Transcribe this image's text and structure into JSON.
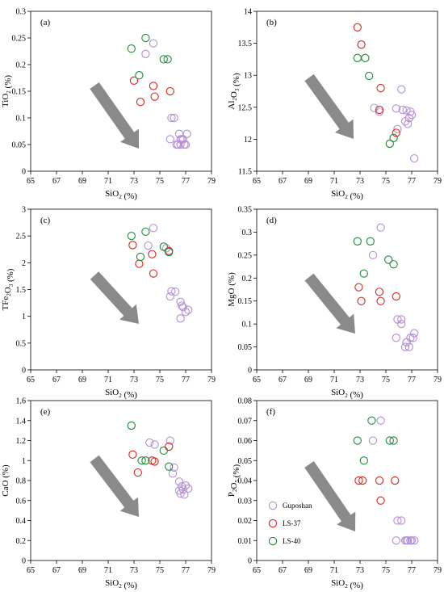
{
  "colors": {
    "Guposhan": "#b48ed6",
    "LS-37": "#d9251d",
    "LS-40": "#1f8a3c",
    "arrow": "#8a8a8a"
  },
  "legend": [
    "Guposhan",
    "LS-37",
    "LS-40"
  ],
  "chart_data": [
    {
      "type": "scatter",
      "panel": "(a)",
      "xlabel": "SiO2 (%)",
      "ylabel": "TiO2 (%)",
      "xlim": [
        65,
        79
      ],
      "ylim": [
        0,
        0.3
      ],
      "xticks": [
        "65",
        "67",
        "69",
        "71",
        "73",
        "75",
        "77",
        "79"
      ],
      "yticks": [
        "0",
        "0.05",
        "0.1",
        "0.15",
        "0.2",
        "0.25",
        "0.3"
      ],
      "series": [
        {
          "name": "Guposhan",
          "points": [
            [
              73.9,
              0.22
            ],
            [
              74.5,
              0.24
            ],
            [
              75.9,
              0.1
            ],
            [
              76.1,
              0.1
            ],
            [
              75.8,
              0.06
            ],
            [
              76.5,
              0.07
            ],
            [
              76.6,
              0.06
            ],
            [
              76.8,
              0.06
            ],
            [
              77.1,
              0.07
            ],
            [
              76.4,
              0.05
            ],
            [
              76.6,
              0.05
            ],
            [
              76.9,
              0.05
            ],
            [
              76.3,
              0.05
            ],
            [
              76.7,
              0.06
            ],
            [
              77.0,
              0.05
            ]
          ]
        },
        {
          "name": "LS-37",
          "points": [
            [
              73.0,
              0.17
            ],
            [
              73.5,
              0.13
            ],
            [
              74.5,
              0.16
            ],
            [
              74.6,
              0.14
            ],
            [
              75.8,
              0.15
            ]
          ]
        },
        {
          "name": "LS-40",
          "points": [
            [
              72.8,
              0.23
            ],
            [
              73.9,
              0.25
            ],
            [
              73.4,
              0.18
            ],
            [
              75.3,
              0.21
            ],
            [
              75.6,
              0.21
            ]
          ]
        }
      ]
    },
    {
      "type": "scatter",
      "panel": "(b)",
      "xlabel": "SiO2 (%)",
      "ylabel": "Al2O3 (%)",
      "xlim": [
        65,
        79
      ],
      "ylim": [
        11.5,
        14
      ],
      "xticks": [
        "65",
        "67",
        "69",
        "71",
        "73",
        "75",
        "77",
        "79"
      ],
      "yticks": [
        "11.5",
        "12",
        "12.5",
        "13",
        "13.5",
        "14"
      ],
      "series": [
        {
          "name": "Guposhan",
          "points": [
            [
              74.1,
              12.49
            ],
            [
              74.5,
              12.43
            ],
            [
              75.8,
              12.48
            ],
            [
              76.2,
              12.78
            ],
            [
              76.3,
              12.46
            ],
            [
              76.6,
              12.45
            ],
            [
              76.9,
              12.43
            ],
            [
              77.0,
              12.38
            ],
            [
              76.5,
              12.28
            ],
            [
              76.7,
              12.24
            ],
            [
              77.2,
              11.7
            ],
            [
              75.9,
              12.16
            ],
            [
              76.8,
              12.33
            ]
          ]
        },
        {
          "name": "LS-37",
          "points": [
            [
              72.8,
              13.75
            ],
            [
              73.1,
              13.48
            ],
            [
              74.6,
              12.8
            ],
            [
              74.5,
              12.46
            ],
            [
              75.8,
              12.1
            ]
          ]
        },
        {
          "name": "LS-40",
          "points": [
            [
              72.8,
              13.27
            ],
            [
              73.4,
              13.27
            ],
            [
              73.7,
              12.99
            ],
            [
              75.3,
              11.93
            ],
            [
              75.6,
              12.02
            ]
          ]
        }
      ]
    },
    {
      "type": "scatter",
      "panel": "(c)",
      "xlabel": "SiO2 (%)",
      "ylabel": "TFe2O3 (%)",
      "xlim": [
        65,
        79
      ],
      "ylim": [
        0,
        3
      ],
      "xticks": [
        "65",
        "67",
        "69",
        "71",
        "73",
        "75",
        "77",
        "79"
      ],
      "yticks": [
        "0",
        "0.5",
        "1",
        "1.5",
        "2",
        "2.5",
        "3"
      ],
      "series": [
        {
          "name": "Guposhan",
          "points": [
            [
              74.5,
              2.65
            ],
            [
              74.1,
              2.32
            ],
            [
              75.5,
              2.27
            ],
            [
              75.9,
              1.47
            ],
            [
              76.2,
              1.46
            ],
            [
              75.8,
              1.37
            ],
            [
              76.6,
              1.27
            ],
            [
              76.7,
              1.2
            ],
            [
              76.8,
              1.17
            ],
            [
              77.2,
              1.12
            ],
            [
              77.0,
              1.08
            ],
            [
              76.6,
              0.96
            ]
          ]
        },
        {
          "name": "LS-37",
          "points": [
            [
              72.9,
              2.33
            ],
            [
              73.4,
              1.98
            ],
            [
              74.4,
              2.16
            ],
            [
              74.5,
              1.8
            ],
            [
              75.7,
              2.22
            ]
          ]
        },
        {
          "name": "LS-40",
          "points": [
            [
              72.8,
              2.5
            ],
            [
              73.9,
              2.58
            ],
            [
              73.5,
              2.11
            ],
            [
              75.3,
              2.3
            ],
            [
              75.7,
              2.2
            ]
          ]
        }
      ]
    },
    {
      "type": "scatter",
      "panel": "(d)",
      "xlabel": "SiO2 (%)",
      "ylabel": "MgO (%)",
      "xlim": [
        65,
        79
      ],
      "ylim": [
        0,
        0.35
      ],
      "xticks": [
        "65",
        "67",
        "69",
        "71",
        "73",
        "75",
        "77",
        "79"
      ],
      "yticks": [
        "0",
        "0.05",
        "0.1",
        "0.15",
        "0.2",
        "0.25",
        "0.3",
        "0.35"
      ],
      "series": [
        {
          "name": "Guposhan",
          "points": [
            [
              74.6,
              0.31
            ],
            [
              74.0,
              0.25
            ],
            [
              75.9,
              0.11
            ],
            [
              76.2,
              0.11
            ],
            [
              76.2,
              0.1
            ],
            [
              75.8,
              0.07
            ],
            [
              76.6,
              0.06
            ],
            [
              76.9,
              0.07
            ],
            [
              77.2,
              0.08
            ],
            [
              77.1,
              0.07
            ],
            [
              76.5,
              0.05
            ],
            [
              76.8,
              0.05
            ],
            [
              76.6,
              0.06
            ]
          ]
        },
        {
          "name": "LS-37",
          "points": [
            [
              72.9,
              0.18
            ],
            [
              73.1,
              0.15
            ],
            [
              74.5,
              0.17
            ],
            [
              74.6,
              0.15
            ],
            [
              75.8,
              0.16
            ]
          ]
        },
        {
          "name": "LS-40",
          "points": [
            [
              72.8,
              0.28
            ],
            [
              73.8,
              0.28
            ],
            [
              73.3,
              0.21
            ],
            [
              75.2,
              0.24
            ],
            [
              75.6,
              0.23
            ]
          ]
        }
      ]
    },
    {
      "type": "scatter",
      "panel": "(e)",
      "xlabel": "SiO2 (%)",
      "ylabel": "CaO (%)",
      "xlim": [
        65,
        79
      ],
      "ylim": [
        0,
        1.6
      ],
      "xticks": [
        "65",
        "67",
        "69",
        "71",
        "73",
        "75",
        "77",
        "79"
      ],
      "yticks": [
        "0",
        "0.2",
        "0.4",
        "0.6",
        "0.8",
        "1",
        "1.2",
        "1.4",
        "1.6"
      ],
      "series": [
        {
          "name": "Guposhan",
          "points": [
            [
              74.2,
              1.18
            ],
            [
              74.6,
              1.16
            ],
            [
              75.8,
              1.2
            ],
            [
              76.1,
              0.93
            ],
            [
              76.0,
              0.87
            ],
            [
              76.5,
              0.79
            ],
            [
              76.7,
              0.74
            ],
            [
              77.0,
              0.75
            ],
            [
              77.2,
              0.72
            ],
            [
              76.5,
              0.7
            ],
            [
              76.6,
              0.67
            ],
            [
              76.9,
              0.66
            ],
            [
              76.8,
              0.71
            ]
          ]
        },
        {
          "name": "LS-37",
          "points": [
            [
              72.9,
              1.06
            ],
            [
              73.3,
              0.88
            ],
            [
              74.4,
              1.0
            ],
            [
              74.6,
              0.99
            ],
            [
              75.7,
              1.14
            ]
          ]
        },
        {
          "name": "LS-40",
          "points": [
            [
              72.8,
              1.35
            ],
            [
              73.6,
              1.0
            ],
            [
              73.9,
              1.0
            ],
            [
              75.3,
              1.1
            ],
            [
              75.7,
              0.94
            ]
          ]
        }
      ]
    },
    {
      "type": "scatter",
      "panel": "(f)",
      "xlabel": "SiO2 (%)",
      "ylabel": "P2O5 (%)",
      "xlim": [
        65,
        79
      ],
      "ylim": [
        0,
        0.08
      ],
      "xticks": [
        "65",
        "67",
        "69",
        "71",
        "73",
        "75",
        "77",
        "79"
      ],
      "yticks": [
        "0",
        "0.01",
        "0.02",
        "0.03",
        "0.04",
        "0.05",
        "0.06",
        "0.07",
        "0.08"
      ],
      "legend_position": "bottom-left",
      "series": [
        {
          "name": "Guposhan",
          "points": [
            [
              74.6,
              0.07
            ],
            [
              74.0,
              0.06
            ],
            [
              75.9,
              0.02
            ],
            [
              76.2,
              0.02
            ],
            [
              75.8,
              0.01
            ],
            [
              76.5,
              0.01
            ],
            [
              76.7,
              0.01
            ],
            [
              76.9,
              0.01
            ],
            [
              77.2,
              0.01
            ],
            [
              76.6,
              0.01
            ],
            [
              77.0,
              0.01
            ]
          ]
        },
        {
          "name": "LS-37",
          "points": [
            [
              72.9,
              0.04
            ],
            [
              73.2,
              0.04
            ],
            [
              74.5,
              0.04
            ],
            [
              74.6,
              0.03
            ],
            [
              75.7,
              0.04
            ]
          ]
        },
        {
          "name": "LS-40",
          "points": [
            [
              72.8,
              0.06
            ],
            [
              73.9,
              0.07
            ],
            [
              73.3,
              0.05
            ],
            [
              75.3,
              0.06
            ],
            [
              75.6,
              0.06
            ]
          ]
        }
      ]
    }
  ]
}
